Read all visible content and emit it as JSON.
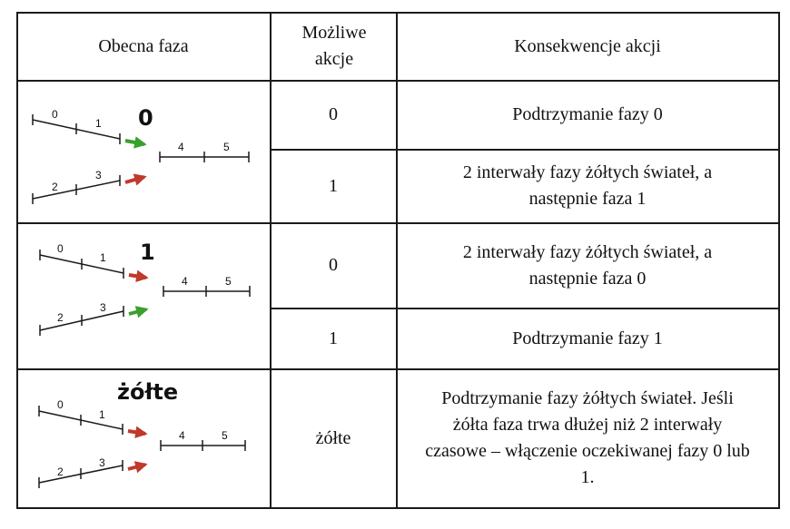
{
  "colors": {
    "green_arrow": "#3aa02e",
    "red_arrow": "#c0392b",
    "border": "#1a1a1a"
  },
  "headers": {
    "phase": "Obecna faza",
    "actions": "Możliwe akcje",
    "consequences": "Konsekwencje akcji"
  },
  "rows": [
    {
      "phase_label": "0",
      "segment_labels": [
        "0",
        "1",
        "2",
        "3",
        "4",
        "5"
      ],
      "arrow_top": "green",
      "arrow_bottom": "red",
      "actions": [
        {
          "action": "0",
          "consequence": "Podtrzymanie fazy 0"
        },
        {
          "action": "1",
          "consequence": "2 interwały fazy żółtych świateł, a następnie faza 1"
        }
      ]
    },
    {
      "phase_label": "1",
      "segment_labels": [
        "0",
        "1",
        "2",
        "3",
        "4",
        "5"
      ],
      "arrow_top": "red",
      "arrow_bottom": "green",
      "actions": [
        {
          "action": "0",
          "consequence": "2 interwały fazy żółtych świateł, a następnie faza 0"
        },
        {
          "action": "1",
          "consequence": "Podtrzymanie fazy 1"
        }
      ]
    },
    {
      "phase_label": "żółte",
      "segment_labels": [
        "0",
        "1",
        "2",
        "3",
        "4",
        "5"
      ],
      "arrow_top": "red",
      "arrow_bottom": "red",
      "actions": [
        {
          "action": "żółte",
          "consequence": "Podtrzymanie fazy żółtych świateł. Jeśli żółta faza trwa dłużej niż 2 interwały czasowe – włączenie oczekiwanej fazy 0 lub 1."
        }
      ]
    }
  ]
}
